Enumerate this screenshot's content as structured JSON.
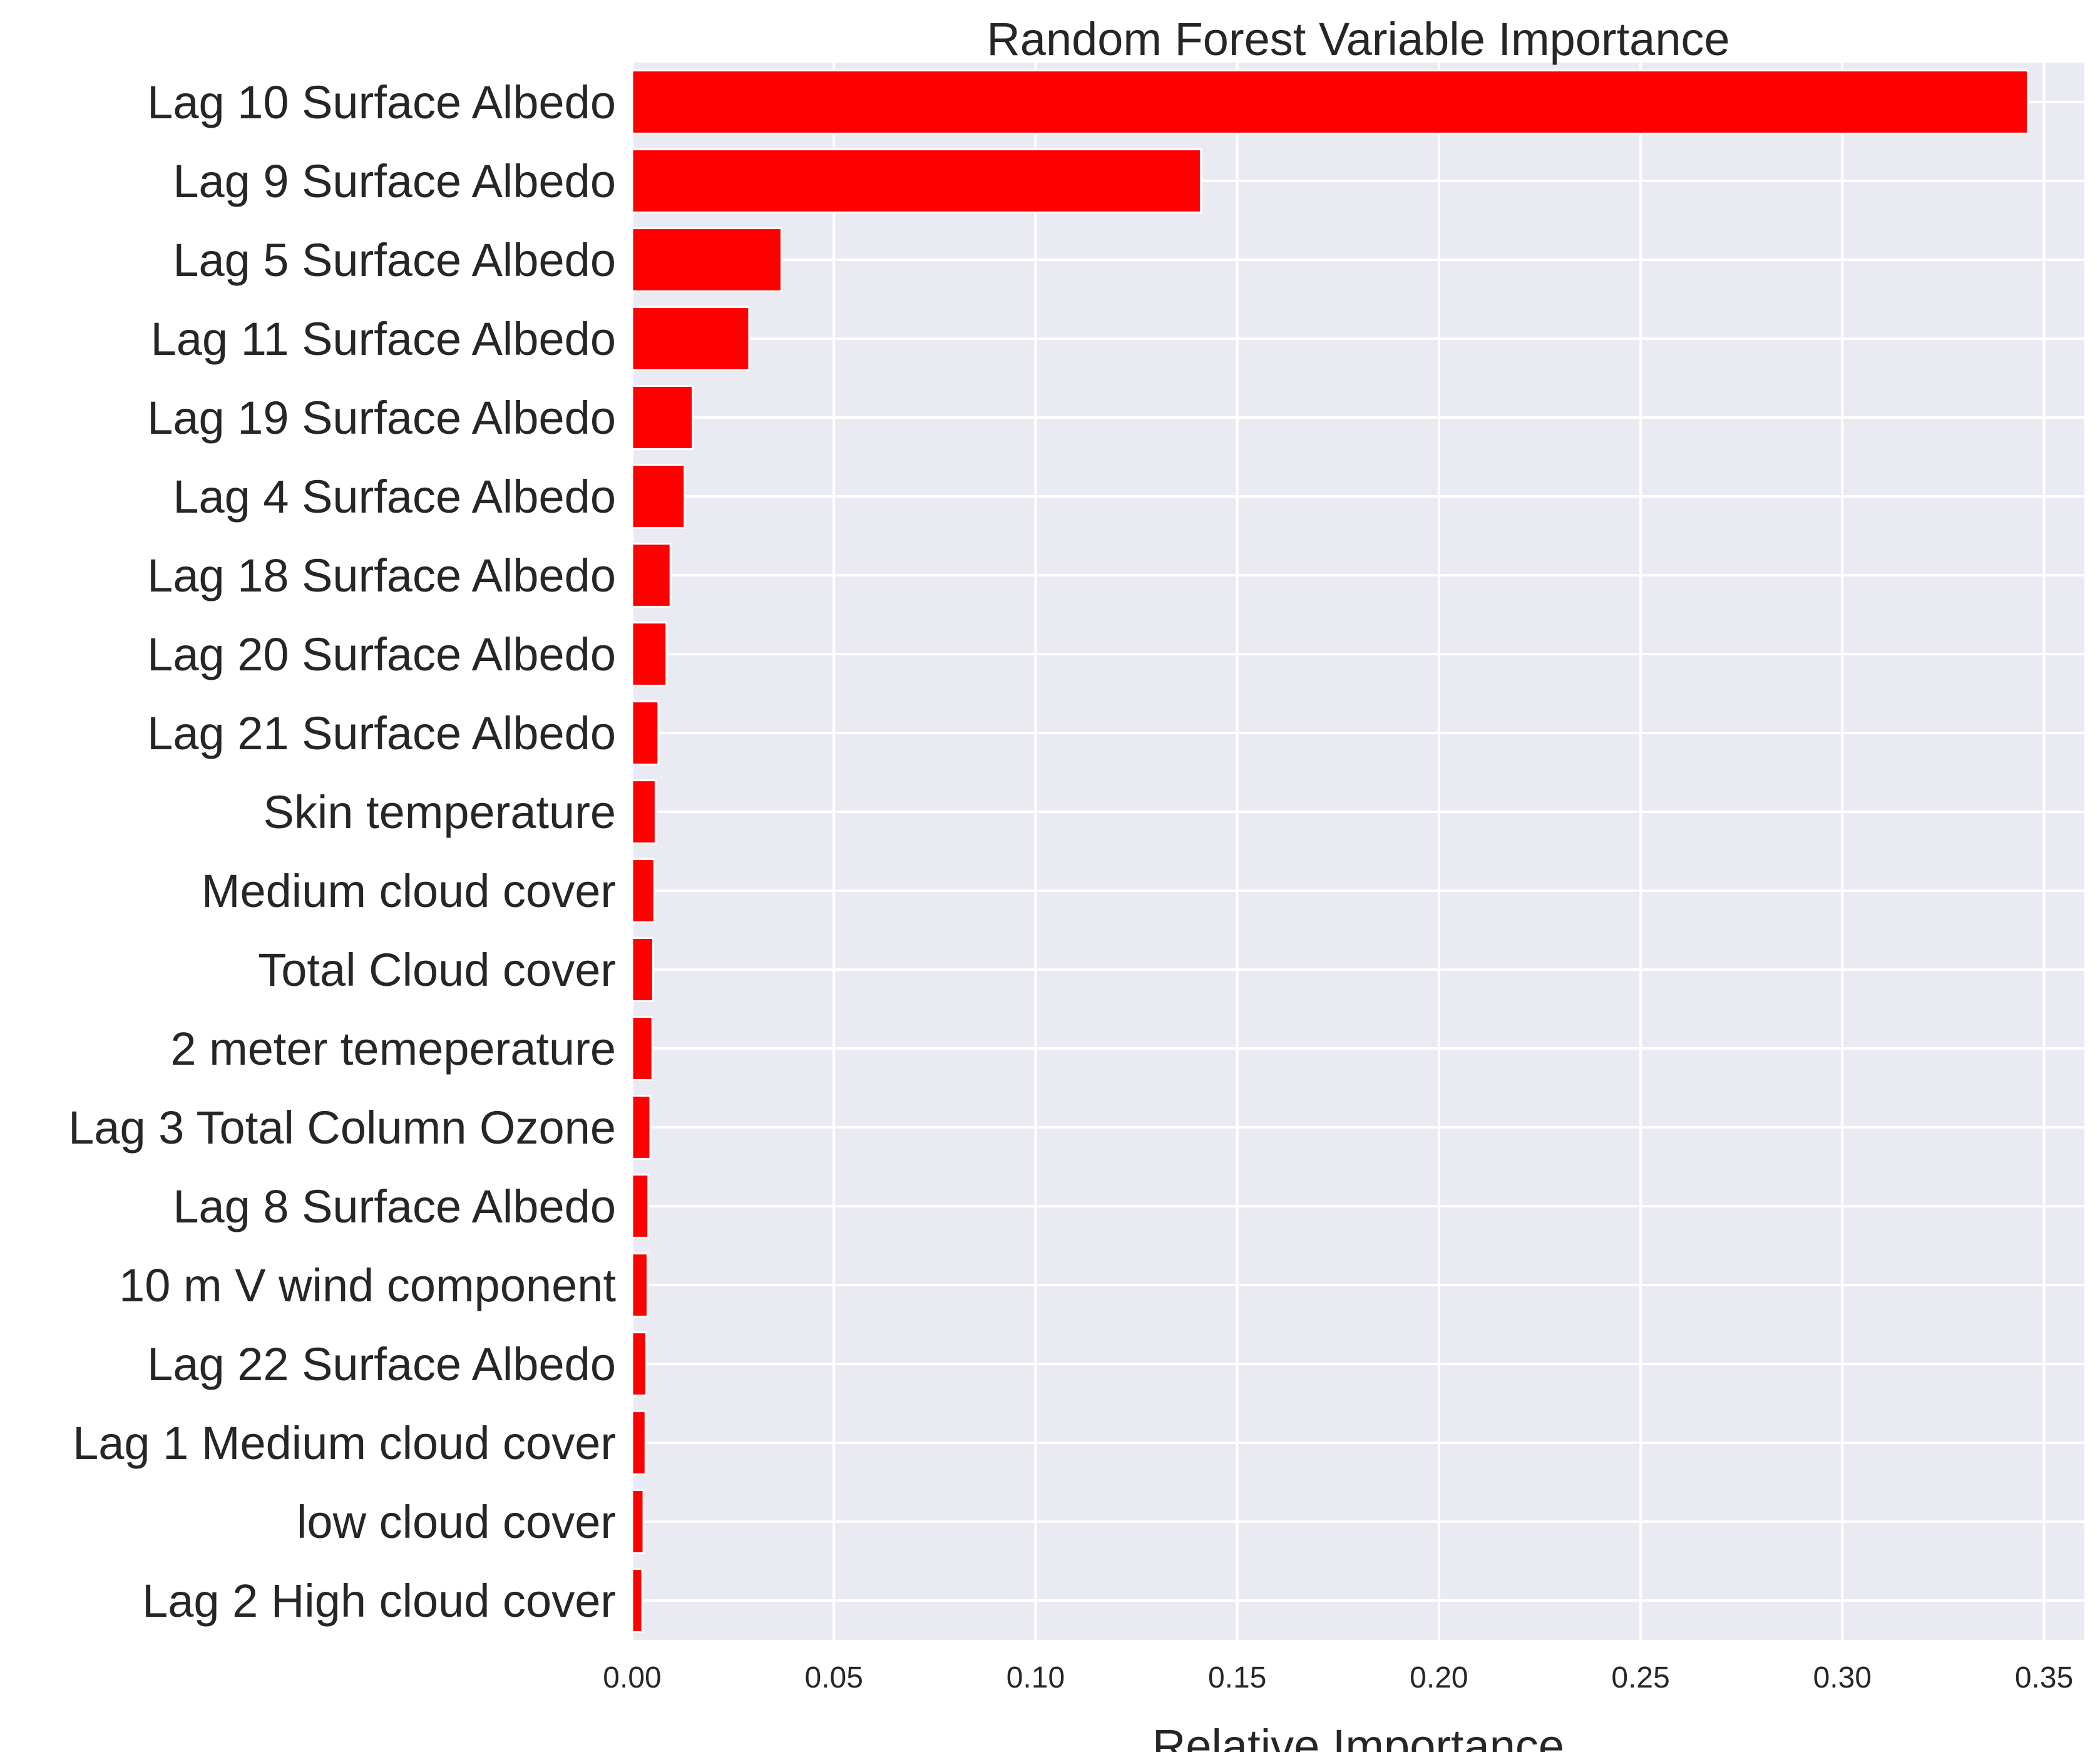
{
  "chart_data": {
    "type": "bar",
    "orientation": "horizontal",
    "title": "Random Forest Variable Importance",
    "xlabel": "Relative Importance",
    "ylabel": "",
    "xlim": [
      0,
      0.36
    ],
    "x_ticks": [
      "0.00",
      "0.05",
      "0.10",
      "0.15",
      "0.20",
      "0.25",
      "0.30",
      "0.35"
    ],
    "grid": true,
    "categories": [
      "Lag 10 Surface Albedo",
      "Lag 9 Surface Albedo",
      "Lag 5 Surface Albedo",
      "Lag 11 Surface Albedo",
      "Lag 19 Surface Albedo",
      "Lag 4 Surface Albedo",
      "Lag 18 Surface Albedo",
      "Lag 20 Surface Albedo",
      "Lag 21 Surface Albedo",
      "Skin temperature",
      "Medium cloud cover",
      "Total Cloud cover",
      "2 meter temeperature",
      "Lag 3 Total Column Ozone",
      "Lag 8 Surface Albedo",
      "10 m V wind component",
      "Lag 22 Surface Albedo",
      "Lag 1 Medium cloud cover",
      "low cloud cover",
      "Lag 2 High cloud cover"
    ],
    "values": [
      0.346,
      0.141,
      0.037,
      0.029,
      0.015,
      0.013,
      0.0095,
      0.0085,
      0.0065,
      0.0058,
      0.0055,
      0.0052,
      0.005,
      0.0045,
      0.004,
      0.0038,
      0.0035,
      0.0033,
      0.0028,
      0.0025
    ],
    "bar_color": "#ff0000",
    "plot_background": "#eaeaf2",
    "grid_color": "#ffffff"
  }
}
